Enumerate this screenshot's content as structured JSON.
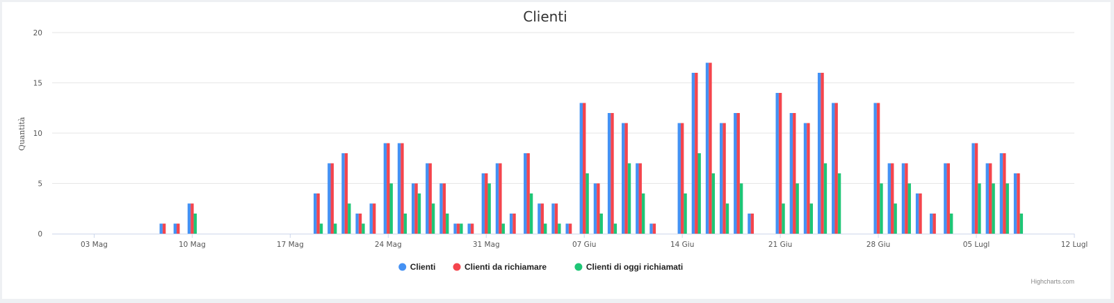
{
  "chart_data": {
    "type": "bar",
    "title": "Clienti",
    "ylabel": "Quantità",
    "xlabel": "",
    "ylim": [
      0,
      20
    ],
    "yticks": [
      0,
      5,
      10,
      15,
      20
    ],
    "x_ticks": [
      {
        "date": "2020-05-03",
        "label": "03 Mag"
      },
      {
        "date": "2020-05-10",
        "label": "10 Mag"
      },
      {
        "date": "2020-05-17",
        "label": "17 Mag"
      },
      {
        "date": "2020-05-24",
        "label": "24 Mag"
      },
      {
        "date": "2020-05-31",
        "label": "31 Mag"
      },
      {
        "date": "2020-06-07",
        "label": "07 Giu"
      },
      {
        "date": "2020-06-14",
        "label": "14 Giu"
      },
      {
        "date": "2020-06-21",
        "label": "21 Giu"
      },
      {
        "date": "2020-06-28",
        "label": "28 Giu"
      },
      {
        "date": "2020-07-05",
        "label": "05 Lugl"
      },
      {
        "date": "2020-07-12",
        "label": "12 Lugl"
      }
    ],
    "x_range": [
      "2020-04-30",
      "2020-07-12"
    ],
    "grid": true,
    "legend_position": "bottom-center",
    "series": [
      {
        "name": "Clienti",
        "color": "#4591f3",
        "points": [
          [
            "2020-05-08",
            1
          ],
          [
            "2020-05-09",
            1
          ],
          [
            "2020-05-10",
            3
          ],
          [
            "2020-05-19",
            4
          ],
          [
            "2020-05-20",
            7
          ],
          [
            "2020-05-21",
            8
          ],
          [
            "2020-05-22",
            2
          ],
          [
            "2020-05-23",
            3
          ],
          [
            "2020-05-24",
            9
          ],
          [
            "2020-05-25",
            9
          ],
          [
            "2020-05-26",
            5
          ],
          [
            "2020-05-27",
            7
          ],
          [
            "2020-05-28",
            5
          ],
          [
            "2020-05-29",
            1
          ],
          [
            "2020-05-30",
            1
          ],
          [
            "2020-05-31",
            6
          ],
          [
            "2020-06-01",
            7
          ],
          [
            "2020-06-02",
            2
          ],
          [
            "2020-06-03",
            8
          ],
          [
            "2020-06-04",
            3
          ],
          [
            "2020-06-05",
            3
          ],
          [
            "2020-06-06",
            1
          ],
          [
            "2020-06-07",
            13
          ],
          [
            "2020-06-08",
            5
          ],
          [
            "2020-06-09",
            12
          ],
          [
            "2020-06-10",
            11
          ],
          [
            "2020-06-11",
            7
          ],
          [
            "2020-06-12",
            1
          ],
          [
            "2020-06-14",
            11
          ],
          [
            "2020-06-15",
            16
          ],
          [
            "2020-06-16",
            17
          ],
          [
            "2020-06-17",
            11
          ],
          [
            "2020-06-18",
            12
          ],
          [
            "2020-06-19",
            2
          ],
          [
            "2020-06-21",
            14
          ],
          [
            "2020-06-22",
            12
          ],
          [
            "2020-06-23",
            11
          ],
          [
            "2020-06-24",
            16
          ],
          [
            "2020-06-25",
            13
          ],
          [
            "2020-06-28",
            13
          ],
          [
            "2020-06-29",
            7
          ],
          [
            "2020-06-30",
            7
          ],
          [
            "2020-07-01",
            4
          ],
          [
            "2020-07-02",
            2
          ],
          [
            "2020-07-03",
            7
          ],
          [
            "2020-07-05",
            9
          ],
          [
            "2020-07-06",
            7
          ],
          [
            "2020-07-07",
            8
          ],
          [
            "2020-07-08",
            6
          ]
        ]
      },
      {
        "name": "Clienti da richiamare",
        "color": "#f4454d",
        "points": [
          [
            "2020-05-08",
            1
          ],
          [
            "2020-05-09",
            1
          ],
          [
            "2020-05-10",
            3
          ],
          [
            "2020-05-19",
            4
          ],
          [
            "2020-05-20",
            7
          ],
          [
            "2020-05-21",
            8
          ],
          [
            "2020-05-22",
            2
          ],
          [
            "2020-05-23",
            3
          ],
          [
            "2020-05-24",
            9
          ],
          [
            "2020-05-25",
            9
          ],
          [
            "2020-05-26",
            5
          ],
          [
            "2020-05-27",
            7
          ],
          [
            "2020-05-28",
            5
          ],
          [
            "2020-05-29",
            1
          ],
          [
            "2020-05-30",
            1
          ],
          [
            "2020-05-31",
            6
          ],
          [
            "2020-06-01",
            7
          ],
          [
            "2020-06-02",
            2
          ],
          [
            "2020-06-03",
            8
          ],
          [
            "2020-06-04",
            3
          ],
          [
            "2020-06-05",
            3
          ],
          [
            "2020-06-06",
            1
          ],
          [
            "2020-06-07",
            13
          ],
          [
            "2020-06-08",
            5
          ],
          [
            "2020-06-09",
            12
          ],
          [
            "2020-06-10",
            11
          ],
          [
            "2020-06-11",
            7
          ],
          [
            "2020-06-12",
            1
          ],
          [
            "2020-06-14",
            11
          ],
          [
            "2020-06-15",
            16
          ],
          [
            "2020-06-16",
            17
          ],
          [
            "2020-06-17",
            11
          ],
          [
            "2020-06-18",
            12
          ],
          [
            "2020-06-19",
            2
          ],
          [
            "2020-06-21",
            14
          ],
          [
            "2020-06-22",
            12
          ],
          [
            "2020-06-23",
            11
          ],
          [
            "2020-06-24",
            16
          ],
          [
            "2020-06-25",
            13
          ],
          [
            "2020-06-28",
            13
          ],
          [
            "2020-06-29",
            7
          ],
          [
            "2020-06-30",
            7
          ],
          [
            "2020-07-01",
            4
          ],
          [
            "2020-07-02",
            2
          ],
          [
            "2020-07-03",
            7
          ],
          [
            "2020-07-05",
            9
          ],
          [
            "2020-07-06",
            7
          ],
          [
            "2020-07-07",
            8
          ],
          [
            "2020-07-08",
            6
          ]
        ]
      },
      {
        "name": "Clienti di oggi richiamati",
        "color": "#1ec676",
        "points": [
          [
            "2020-05-10",
            2
          ],
          [
            "2020-05-19",
            1
          ],
          [
            "2020-05-20",
            1
          ],
          [
            "2020-05-21",
            3
          ],
          [
            "2020-05-22",
            1
          ],
          [
            "2020-05-24",
            5
          ],
          [
            "2020-05-25",
            2
          ],
          [
            "2020-05-26",
            4
          ],
          [
            "2020-05-27",
            3
          ],
          [
            "2020-05-28",
            2
          ],
          [
            "2020-05-29",
            1
          ],
          [
            "2020-05-31",
            5
          ],
          [
            "2020-06-01",
            1
          ],
          [
            "2020-06-03",
            4
          ],
          [
            "2020-06-04",
            1
          ],
          [
            "2020-06-05",
            1
          ],
          [
            "2020-06-07",
            6
          ],
          [
            "2020-06-08",
            2
          ],
          [
            "2020-06-09",
            1
          ],
          [
            "2020-06-10",
            7
          ],
          [
            "2020-06-11",
            4
          ],
          [
            "2020-06-14",
            4
          ],
          [
            "2020-06-15",
            8
          ],
          [
            "2020-06-16",
            6
          ],
          [
            "2020-06-17",
            3
          ],
          [
            "2020-06-18",
            5
          ],
          [
            "2020-06-21",
            3
          ],
          [
            "2020-06-22",
            5
          ],
          [
            "2020-06-23",
            3
          ],
          [
            "2020-06-24",
            7
          ],
          [
            "2020-06-25",
            6
          ],
          [
            "2020-06-28",
            5
          ],
          [
            "2020-06-29",
            3
          ],
          [
            "2020-06-30",
            5
          ],
          [
            "2020-07-03",
            2
          ],
          [
            "2020-07-05",
            5
          ],
          [
            "2020-07-06",
            5
          ],
          [
            "2020-07-07",
            5
          ],
          [
            "2020-07-08",
            2
          ]
        ]
      }
    ]
  },
  "credits": "Highcharts.com"
}
